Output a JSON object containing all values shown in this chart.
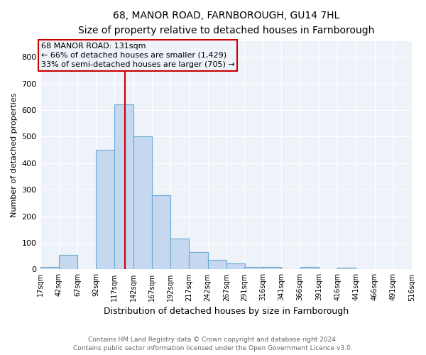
{
  "title": "68, MANOR ROAD, FARNBOROUGH, GU14 7HL",
  "subtitle": "Size of property relative to detached houses in Farnborough",
  "xlabel": "Distribution of detached houses by size in Farnborough",
  "ylabel": "Number of detached properties",
  "footer_line1": "Contains HM Land Registry data © Crown copyright and database right 2024.",
  "footer_line2": "Contains public sector information licensed under the Open Government Licence v3.0.",
  "bar_color": "#c5d8ef",
  "bar_edge_color": "#6aaad4",
  "background_color": "#eef3f9",
  "grid_color": "#ffffff",
  "annotation_text": "68 MANOR ROAD: 131sqm\n← 66% of detached houses are smaller (1,429)\n33% of semi-detached houses are larger (705) →",
  "annotation_box_color": "#cc0000",
  "vline_x": 131,
  "vline_color": "#cc0000",
  "bin_edges": [
    17,
    42,
    67,
    92,
    117,
    142,
    167,
    192,
    217,
    242,
    267,
    291,
    316,
    341,
    366,
    391,
    416,
    441,
    466,
    491,
    516
  ],
  "bin_labels": [
    "17sqm",
    "42sqm",
    "67sqm",
    "92sqm",
    "117sqm",
    "142sqm",
    "167sqm",
    "192sqm",
    "217sqm",
    "242sqm",
    "267sqm",
    "291sqm",
    "316sqm",
    "341sqm",
    "366sqm",
    "391sqm",
    "416sqm",
    "441sqm",
    "466sqm",
    "491sqm",
    "516sqm"
  ],
  "bar_heights": [
    10,
    55,
    0,
    450,
    620,
    500,
    280,
    115,
    65,
    37,
    22,
    10,
    8,
    0,
    8,
    0,
    7,
    0,
    0,
    0
  ],
  "ylim": [
    0,
    860
  ],
  "yticks": [
    0,
    100,
    200,
    300,
    400,
    500,
    600,
    700,
    800
  ]
}
